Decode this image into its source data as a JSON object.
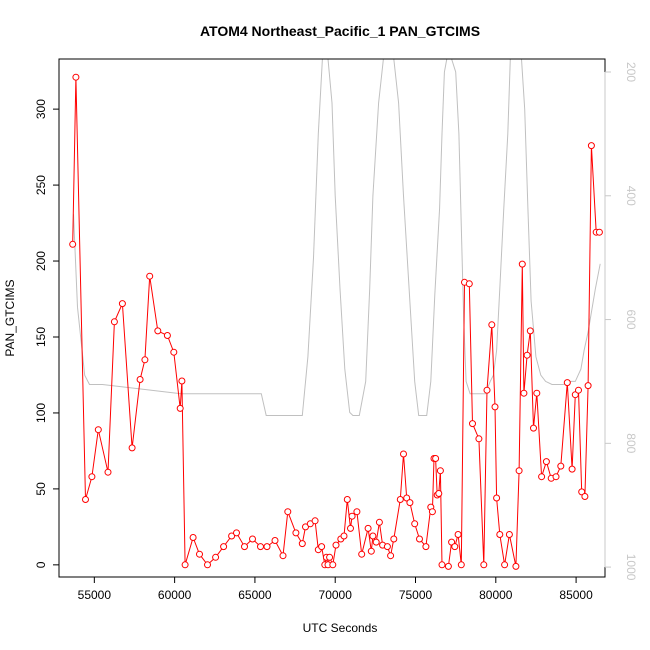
{
  "chart_data": {
    "type": "line",
    "title": "ATOM4 Northeast_Pacific_1 PAN_GTCIMS",
    "xlabel": "UTC Seconds",
    "ylabel": "PAN_GTCIMS",
    "xlim": [
      52800,
      86800
    ],
    "ylim": [
      -8,
      333
    ],
    "y2lim": [
      1016,
      179
    ],
    "x_ticks": [
      55000,
      60000,
      65000,
      70000,
      75000,
      80000,
      85000
    ],
    "y_ticks": [
      0,
      50,
      100,
      150,
      200,
      250,
      300
    ],
    "y2_ticks": [
      200,
      400,
      600,
      800,
      1000
    ],
    "colors": {
      "primary": "#ff0000",
      "secondary": "#c0c0c0",
      "frame": "#000000"
    },
    "series": [
      {
        "name": "",
        "axis": "left",
        "style": "line+points",
        "color": "#ff0000",
        "x": [
          53650,
          53850,
          54450,
          54850,
          55250,
          55850,
          56250,
          56750,
          57350,
          57850,
          58150,
          58450,
          58950,
          59550,
          59950,
          60350,
          60450,
          60650,
          61150,
          61550,
          62050,
          62550,
          63050,
          63550,
          63850,
          64350,
          64850,
          65350,
          65750,
          66250,
          66750,
          67050,
          67550,
          67950,
          68150,
          68450,
          68750,
          68950,
          69150,
          69350,
          69450,
          69550,
          69650,
          69850,
          70050,
          70350,
          70550,
          70750,
          70950,
          71050,
          71350,
          71650,
          72050,
          72250,
          72350,
          72550,
          72750,
          72950,
          73250,
          73450,
          73650,
          74050,
          74250,
          74450,
          74650,
          74950,
          75250,
          75650,
          75950,
          76050,
          76150,
          76250,
          76350,
          76450,
          76550,
          76650,
          77050,
          77250,
          77450,
          77650,
          77850,
          78050,
          78350,
          78550,
          78950,
          79250,
          79450,
          79750,
          79950,
          80050,
          80250,
          80550,
          80850,
          81250,
          81450,
          81650,
          81750,
          81950,
          82150,
          82350,
          82550,
          82850,
          83150,
          83450,
          83750,
          84050,
          84450,
          84750,
          84950,
          85150,
          85350,
          85550,
          85750,
          85950,
          86250,
          86450
        ],
        "values": [
          211,
          321,
          43,
          58,
          89,
          61,
          160,
          172,
          77,
          122,
          135,
          190,
          154,
          151,
          140,
          103,
          121,
          0,
          18,
          7,
          0,
          5,
          12,
          19,
          21,
          12,
          17,
          12,
          12,
          16,
          6,
          35,
          21,
          14,
          25,
          27,
          29,
          10,
          12,
          0,
          5,
          0,
          5,
          0,
          13,
          17,
          19,
          43,
          24,
          32,
          35,
          7,
          24,
          9,
          19,
          15,
          28,
          13,
          12,
          6,
          17,
          43,
          73,
          44,
          41,
          27,
          17,
          12,
          38,
          35,
          70,
          70,
          46,
          47,
          62,
          0,
          -1,
          15,
          12,
          20,
          0,
          186,
          185,
          93,
          83,
          0,
          115,
          158,
          104,
          44,
          20,
          0,
          20,
          -1,
          62,
          198,
          113,
          138,
          154,
          90,
          113,
          58,
          68,
          57,
          58,
          65,
          120,
          63,
          112,
          115,
          48,
          45,
          118,
          276,
          219,
          219
        ]
      },
      {
        "name": "",
        "axis": "right",
        "style": "line",
        "color": "#c0c0c0",
        "x": [
          53700,
          53950,
          54400,
          54700,
          55500,
          60400,
          65400,
          65700,
          67950,
          68300,
          68650,
          68950,
          69200,
          69400,
          69550,
          69800,
          70000,
          70300,
          70600,
          70900,
          71100,
          71500,
          71900,
          72150,
          72350,
          72700,
          73000,
          73350,
          73650,
          73950,
          74250,
          74600,
          74950,
          75200,
          75450,
          75700,
          75950,
          76200,
          76500,
          76650,
          76800,
          76950,
          77100,
          77250,
          77500,
          77700,
          77850,
          78000,
          78150,
          78400,
          78650,
          78900,
          79100,
          79350,
          79650,
          79850,
          80050,
          80250,
          80500,
          80750,
          80900,
          81100,
          81350,
          81600,
          81800,
          82000,
          82200,
          82500,
          82800,
          83100,
          83500,
          84200,
          84700,
          84950,
          85300,
          85500,
          85750,
          86200,
          86500
        ],
        "values": [
          430,
          580,
          690,
          705,
          705,
          720,
          720,
          755,
          755,
          660,
          500,
          300,
          179,
          179,
          179,
          250,
          400,
          550,
          680,
          750,
          755,
          755,
          700,
          550,
          400,
          250,
          179,
          179,
          179,
          250,
          400,
          550,
          700,
          755,
          755,
          755,
          700,
          560,
          420,
          300,
          200,
          179,
          179,
          179,
          200,
          300,
          450,
          600,
          700,
          720,
          720,
          720,
          720,
          720,
          700,
          690,
          650,
          550,
          420,
          300,
          179,
          179,
          179,
          179,
          260,
          420,
          570,
          660,
          690,
          700,
          705,
          705,
          700,
          700,
          680,
          650,
          620,
          550,
          510
        ]
      }
    ]
  }
}
